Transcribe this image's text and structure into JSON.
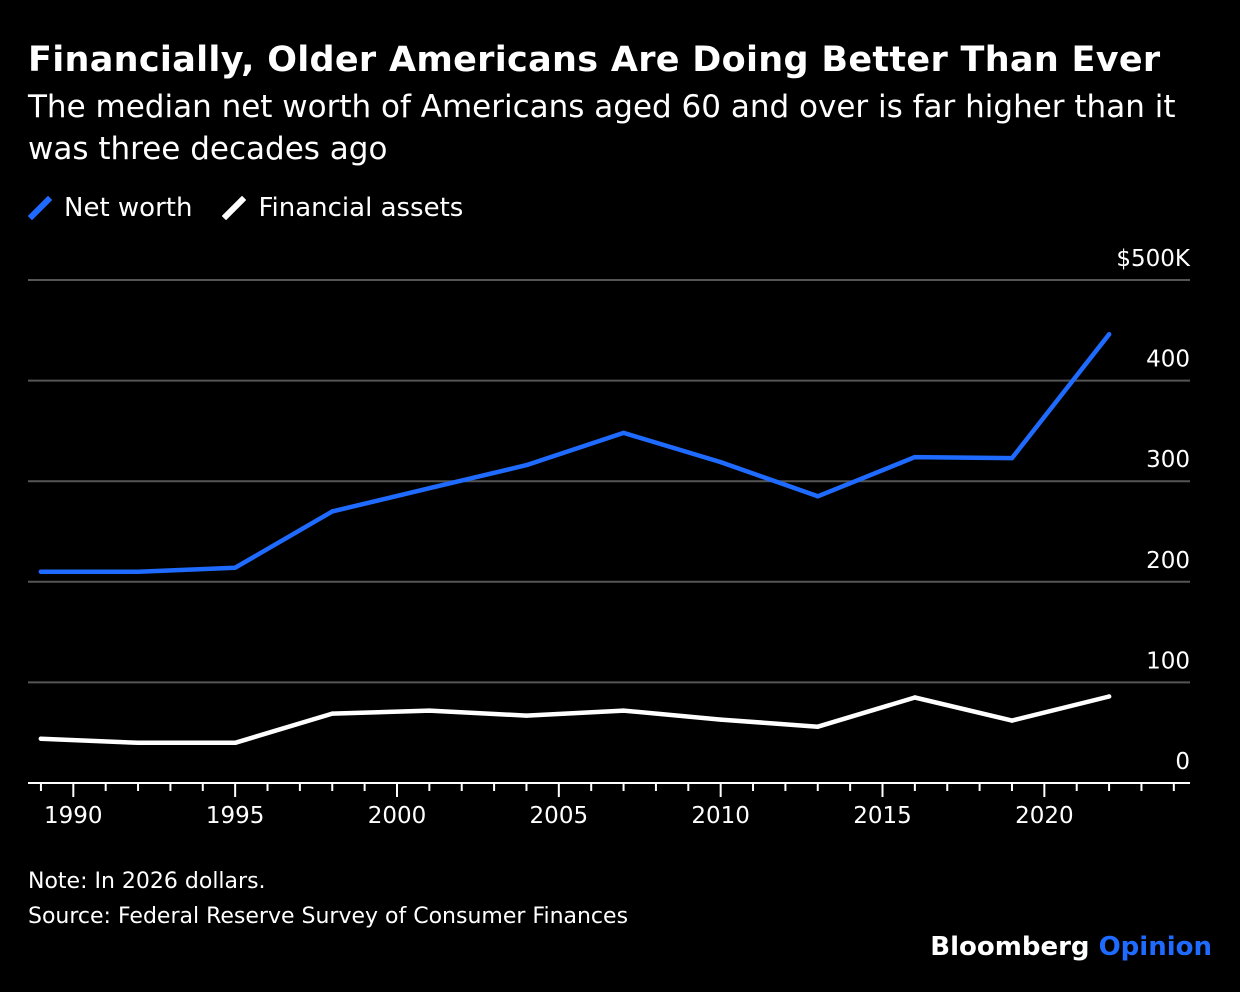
{
  "header": {
    "title": "Financially, Older Americans Are Doing Better Than Ever",
    "subtitle": "The median net worth of Americans aged 60 and over is far higher than it was three decades ago"
  },
  "legend": {
    "items": [
      {
        "label": "Net worth",
        "color": "#1f6bff",
        "icon": "diagonal-line-swatch"
      },
      {
        "label": "Financial assets",
        "color": "#ffffff",
        "icon": "diagonal-line-swatch"
      }
    ]
  },
  "chart_data": {
    "type": "line",
    "title": "Financially, Older Americans Are Doing Better Than Ever",
    "subtitle": "The median net worth of Americans aged 60 and over is far higher than it was three decades ago",
    "xlabel": "",
    "ylabel": "",
    "x": [
      1989,
      1992,
      1995,
      1998,
      2001,
      2004,
      2007,
      2010,
      2013,
      2016,
      2019,
      2022
    ],
    "series": [
      {
        "name": "Net worth",
        "color": "#1f6bff",
        "values": [
          210,
          210,
          214,
          270,
          293,
          316,
          348,
          319,
          285,
          324,
          323,
          446
        ]
      },
      {
        "name": "Financial assets",
        "color": "#ffffff",
        "values": [
          44,
          40,
          40,
          69,
          72,
          67,
          72,
          63,
          56,
          85,
          62,
          86
        ]
      }
    ],
    "ylim": [
      0,
      500
    ],
    "xlim": [
      1988.6,
      2024.5
    ],
    "y_ticks": [
      0,
      100,
      200,
      300,
      400,
      500
    ],
    "y_tick_labels": [
      "0",
      "100",
      "200",
      "300",
      "400",
      "$500K"
    ],
    "x_major_ticks": [
      1990,
      1995,
      2000,
      2005,
      2010,
      2015,
      2020
    ],
    "x_tick_labels": [
      "1990",
      "1995",
      "2000",
      "2005",
      "2010",
      "2015",
      "2020"
    ],
    "x_minor_tick_step": 1,
    "grid": "horizontal",
    "y_axis_side": "right",
    "legend_position": "top-left",
    "gridline_color": "#555555",
    "background_color": "#000000"
  },
  "footer": {
    "note": "Note: In 2026 dollars.",
    "source": "Source: Federal Reserve Survey of Consumer Finances",
    "brand": "Bloomberg",
    "brand_accent": "Opinion",
    "brand_accent_color": "#1f6bff"
  }
}
